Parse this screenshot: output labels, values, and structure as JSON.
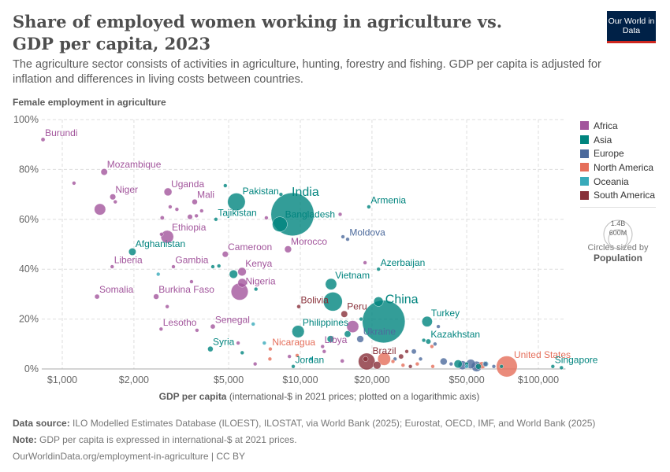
{
  "header": {
    "title": "Share of employed women working in agriculture vs. GDP per capita, 2023",
    "subtitle": "The agriculture sector consists of activities in agriculture, hunting, forestry and fishing. GDP per capita is adjusted for inflation and differences in living costs between countries.",
    "logo": "Our World in Data"
  },
  "legend": {
    "regions": [
      {
        "name": "Africa",
        "color": "#a2559c"
      },
      {
        "name": "Asia",
        "color": "#00847e"
      },
      {
        "name": "Europe",
        "color": "#4c6a9c"
      },
      {
        "name": "North America",
        "color": "#e56e5a"
      },
      {
        "name": "Oceania",
        "color": "#38aaba"
      },
      {
        "name": "South America",
        "color": "#883039"
      }
    ],
    "size_values": [
      "1.4B",
      "600M"
    ],
    "size_caption": "Circles sized by",
    "size_variable": "Population"
  },
  "footer": {
    "source_label": "Data source:",
    "source": "ILO Modelled Estimates Database (ILOEST), ILOSTAT, via World Bank (2025); Eurostat, OECD, IMF, and World Bank (2025)",
    "note_label": "Note:",
    "note": "GDP per capita is expressed in international-$ at 2021 prices.",
    "url": "OurWorldinData.org/employment-in-agriculture | CC BY"
  },
  "chart_data": {
    "type": "scatter",
    "title": "Share of employed women working in agriculture vs. GDP per capita, 2023",
    "ylabel": "Female employment in agriculture",
    "xlabel_bold": "GDP per capita",
    "xlabel_rest": " (international-$ in 2021 prices; plotted on a logarithmic axis)",
    "xscale": "log",
    "xlim": [
      820,
      130000
    ],
    "ylim": [
      0,
      100
    ],
    "xticks": [
      {
        "v": 1000,
        "l": "$1,000"
      },
      {
        "v": 2000,
        "l": "$2,000"
      },
      {
        "v": 5000,
        "l": "$5,000"
      },
      {
        "v": 10000,
        "l": "$10,000"
      },
      {
        "v": 20000,
        "l": "$20,000"
      },
      {
        "v": 50000,
        "l": "$50,000"
      },
      {
        "v": 100000,
        "l": "$100,000"
      }
    ],
    "yticks": [
      {
        "v": 0,
        "l": "0%"
      },
      {
        "v": 20,
        "l": "20%"
      },
      {
        "v": 40,
        "l": "40%"
      },
      {
        "v": 60,
        "l": "60%"
      },
      {
        "v": 80,
        "l": "80%"
      },
      {
        "v": 100,
        "l": "100%"
      }
    ],
    "grid": true,
    "legend_position": "right",
    "fields": [
      "name",
      "region",
      "gdp_per_capita",
      "female_agri_share",
      "population_millions"
    ],
    "points": [
      [
        "Burundi",
        "Africa",
        830,
        92,
        13
      ],
      [
        "Mozambique",
        "Africa",
        1500,
        79,
        34
      ],
      [
        "Niger",
        "Africa",
        1630,
        69,
        27
      ],
      [
        "Uganda",
        "Africa",
        2780,
        71,
        48
      ],
      [
        "Mali",
        "Africa",
        3600,
        67,
        23
      ],
      [
        "Ethiopia",
        "Africa",
        2760,
        53,
        126
      ],
      [
        "Afghanistan",
        "Asia",
        1970,
        47,
        42
      ],
      [
        "Liberia",
        "Africa",
        1620,
        41,
        5
      ],
      [
        "Gambia",
        "Africa",
        2930,
        41,
        3
      ],
      [
        "Somalia",
        "Africa",
        1400,
        29,
        18
      ],
      [
        "Burkina Faso",
        "Africa",
        2480,
        29,
        23
      ],
      [
        "Lesotho",
        "Africa",
        2600,
        16,
        2
      ],
      [
        "Senegal",
        "Africa",
        4290,
        17,
        18
      ],
      [
        "Syria",
        "Asia",
        4190,
        8,
        23
      ],
      [
        "Pakistan",
        "Asia",
        5390,
        67,
        240
      ],
      [
        "Tajikistan",
        "Asia",
        4420,
        60,
        10
      ],
      [
        "India",
        "Asia",
        9270,
        62,
        1430
      ],
      [
        "Bangladesh",
        "Asia",
        8200,
        58,
        173
      ],
      [
        "Morocco",
        "Africa",
        8880,
        48,
        37
      ],
      [
        "Cameroon",
        "Africa",
        4840,
        46,
        28
      ],
      [
        "Kenya",
        "Africa",
        5690,
        39,
        55
      ],
      [
        "Nigeria",
        "Africa",
        5560,
        31,
        224
      ],
      [
        "Vietnam",
        "Asia",
        13460,
        34,
        99
      ],
      [
        "Bolivia",
        "South America",
        9850,
        25,
        12
      ],
      [
        "Peru",
        "South America",
        15300,
        22,
        34
      ],
      [
        "China",
        "Asia",
        22400,
        19,
        1410
      ],
      [
        "Philippines",
        "Asia",
        9790,
        15,
        117
      ],
      [
        "Ukraine",
        "Europe",
        17860,
        12,
        37
      ],
      [
        "Libya",
        "Africa",
        12400,
        9,
        7
      ],
      [
        "Nicaragua",
        "North America",
        7480,
        8,
        7
      ],
      [
        "Jordan",
        "Asia",
        9340,
        1,
        11
      ],
      [
        "Brazil",
        "South America",
        19000,
        3,
        216
      ],
      [
        "Armenia",
        "Asia",
        19400,
        65,
        3
      ],
      [
        "Moldova",
        "Europe",
        15800,
        52,
        3
      ],
      [
        "Azerbaijan",
        "Asia",
        21300,
        40,
        10
      ],
      [
        "Turkey",
        "Asia",
        34100,
        19,
        85
      ],
      [
        "Kazakhstan",
        "Asia",
        34500,
        11,
        20
      ],
      [
        "United States",
        "North America",
        73700,
        1,
        340
      ],
      [
        "Singapore",
        "Asia",
        115000,
        1,
        6
      ],
      [
        "",
        "Africa",
        1120,
        74.5,
        6
      ],
      [
        "",
        "Africa",
        1440,
        64,
        100
      ],
      [
        "",
        "Africa",
        1670,
        67,
        10
      ],
      [
        "",
        "Africa",
        2630,
        60.6,
        13
      ],
      [
        "",
        "Africa",
        2840,
        65,
        8
      ],
      [
        "",
        "Africa",
        3030,
        64,
        10
      ],
      [
        "",
        "Africa",
        3440,
        61,
        20
      ],
      [
        "",
        "Africa",
        3660,
        61.4,
        8
      ],
      [
        "",
        "Africa",
        3850,
        63.4,
        5
      ],
      [
        "",
        "Africa",
        2610,
        54,
        6
      ],
      [
        "",
        "Africa",
        3490,
        35,
        4
      ],
      [
        "",
        "Africa",
        2760,
        25,
        5
      ],
      [
        "",
        "Africa",
        3680,
        15.5,
        4
      ],
      [
        "",
        "Africa",
        5480,
        10.4,
        4
      ],
      [
        "",
        "Africa",
        6460,
        2,
        2
      ],
      [
        "",
        "Africa",
        5700,
        34.5,
        60
      ],
      [
        "",
        "Africa",
        7200,
        60.6,
        7
      ],
      [
        "",
        "Africa",
        14700,
        62,
        2
      ],
      [
        "",
        "Africa",
        18700,
        42.6,
        2
      ],
      [
        "",
        "Africa",
        16600,
        17,
        112
      ],
      [
        "",
        "Africa",
        15000,
        3.2,
        12
      ],
      [
        "",
        "Africa",
        9000,
        5,
        6
      ],
      [
        "",
        "Africa",
        12600,
        7,
        4
      ],
      [
        "",
        "Asia",
        4840,
        73.5,
        6
      ],
      [
        "",
        "Asia",
        8290,
        70,
        3
      ],
      [
        "",
        "Asia",
        5240,
        38,
        54
      ],
      [
        "",
        "Asia",
        6510,
        32,
        7
      ],
      [
        "",
        "Asia",
        4290,
        41,
        4
      ],
      [
        "",
        "Asia",
        4550,
        41.3,
        3
      ],
      [
        "",
        "Asia",
        13400,
        12,
        36
      ],
      [
        "",
        "Asia",
        15800,
        14,
        33
      ],
      [
        "",
        "Asia",
        21300,
        27,
        70
      ],
      [
        "",
        "Asia",
        13700,
        27,
        277
      ],
      [
        "",
        "Asia",
        18000,
        20,
        7
      ],
      [
        "",
        "Asia",
        5700,
        6.5,
        7
      ],
      [
        "",
        "Asia",
        33000,
        11.5,
        2
      ],
      [
        "",
        "Asia",
        50000,
        2,
        10
      ],
      [
        "",
        "Asia",
        70000,
        1,
        5
      ],
      [
        "",
        "Asia",
        125000,
        0.5,
        3
      ],
      [
        "",
        "Asia",
        46000,
        2,
        52
      ],
      [
        "",
        "Asia",
        56000,
        1,
        24
      ],
      [
        "",
        "Oceania",
        2530,
        38,
        10
      ],
      [
        "",
        "Oceania",
        6340,
        18,
        1
      ],
      [
        "",
        "Oceania",
        7060,
        10.4,
        1
      ],
      [
        "",
        "Oceania",
        11100,
        4,
        1
      ],
      [
        "",
        "Oceania",
        60000,
        2,
        26
      ],
      [
        "",
        "Oceania",
        50000,
        1,
        5
      ],
      [
        "",
        "Europe",
        15100,
        53,
        3
      ],
      [
        "",
        "Europe",
        38000,
        17,
        10
      ],
      [
        "",
        "Europe",
        36800,
        10,
        7
      ],
      [
        "",
        "Europe",
        40000,
        3,
        38
      ],
      [
        "",
        "Europe",
        43000,
        2,
        10
      ],
      [
        "",
        "Europe",
        48000,
        1.5,
        60
      ],
      [
        "",
        "Europe",
        52000,
        2,
        68
      ],
      [
        "",
        "Europe",
        55000,
        1,
        84
      ],
      [
        "",
        "Europe",
        60000,
        2,
        17
      ],
      [
        "",
        "Europe",
        65000,
        1,
        9
      ],
      [
        "",
        "Europe",
        30000,
        7,
        19
      ],
      [
        "",
        "Europe",
        25000,
        4,
        7
      ],
      [
        "",
        "Europe",
        32000,
        4,
        2
      ],
      [
        "",
        "North America",
        7450,
        4,
        11
      ],
      [
        "",
        "North America",
        9700,
        5.4,
        5
      ],
      [
        "",
        "North America",
        22500,
        4,
        128
      ],
      [
        "",
        "North America",
        24500,
        3,
        5
      ],
      [
        "",
        "North America",
        27000,
        1.5,
        4
      ],
      [
        "",
        "North America",
        35700,
        9,
        2
      ],
      [
        "",
        "North America",
        36000,
        1,
        3
      ],
      [
        "",
        "North America",
        58000,
        1.5,
        39
      ],
      [
        "",
        "North America",
        31000,
        2,
        1
      ],
      [
        "",
        "South America",
        18800,
        4,
        20
      ],
      [
        "",
        "South America",
        21000,
        1.5,
        46
      ],
      [
        "",
        "South America",
        29000,
        1,
        3
      ],
      [
        "",
        "South America",
        26500,
        5,
        19
      ],
      [
        "",
        "South America",
        28000,
        7,
        3
      ]
    ]
  }
}
